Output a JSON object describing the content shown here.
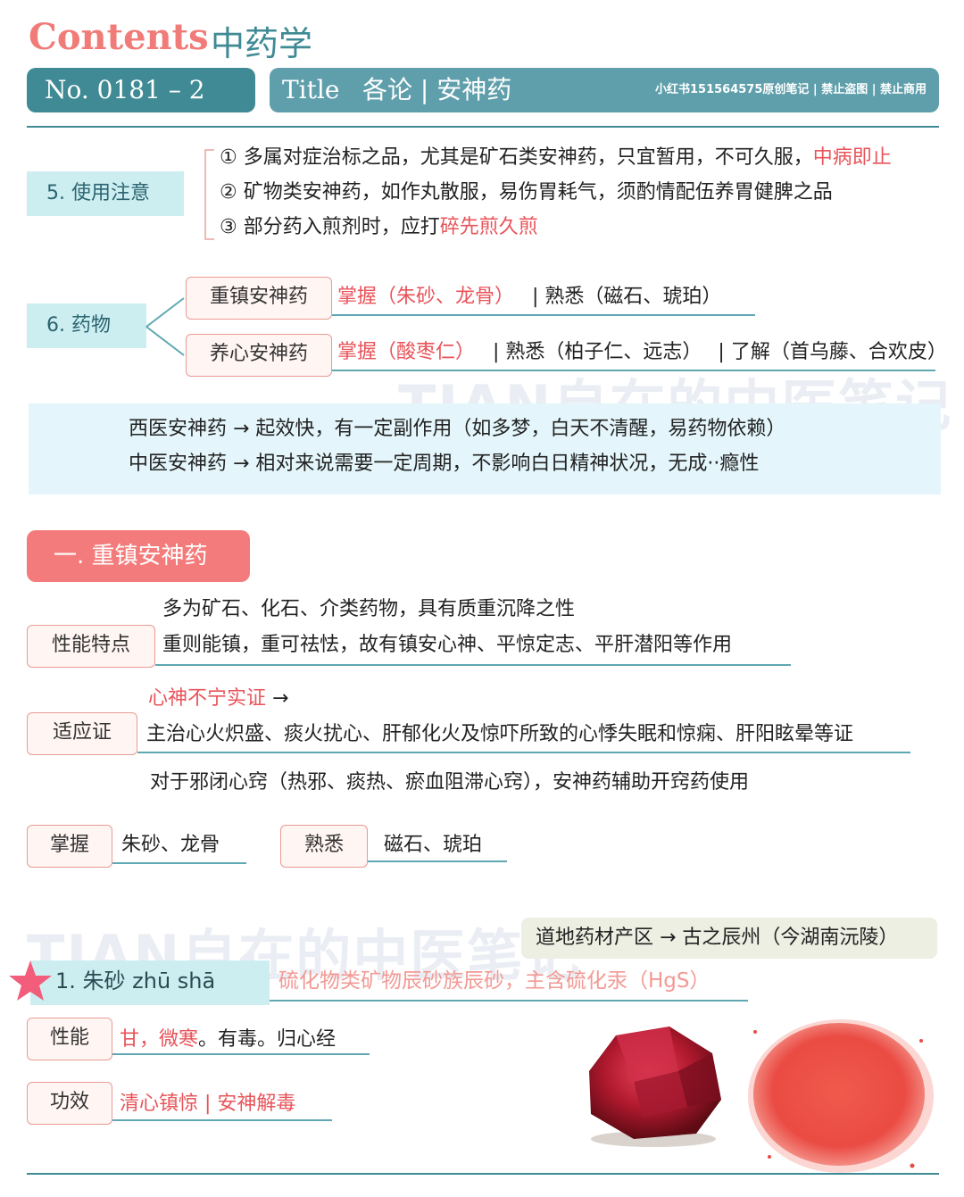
{
  "header": {
    "contents_word": "Contents",
    "contents_subject": "中药学",
    "number": "No. 0181 – 2",
    "title_label": "Title",
    "title_text": "各论 | 安神药",
    "copyright_note": "小红书151564575原创笔记 | 禁止盗图 | 禁止商用"
  },
  "usage": {
    "label": "5.  使用注意",
    "items": [
      {
        "text": "① 多属对症治标之品，尤其是矿石类安神药，只宜暂用，不可久服，",
        "highlight": "中病即止"
      },
      {
        "text": "② 矿物类安神药，如作丸散服，易伤胃耗气，须酌情配伍养胃健脾之品",
        "highlight": ""
      },
      {
        "text": "③ 部分药入煎剂时，应打",
        "highlight": "碎先煎久煎"
      }
    ]
  },
  "drugs": {
    "label": "6.  药物",
    "groups": [
      {
        "name": "重镇安神药",
        "master": "掌握（朱砂、龙骨）",
        "familiar": "| 熟悉（磁石、琥珀）",
        "understand": ""
      },
      {
        "name": "养心安神药",
        "master": "掌握（酸枣仁）",
        "familiar": "| 熟悉（柏子仁、远志）",
        "understand": "| 了解（首乌藤、合欢皮）"
      }
    ]
  },
  "note": {
    "line1": "西医安神药 → 起效快，有一定副作用（如多梦，白天不清醒，易药物依赖）",
    "line2": "中医安神药 → 相对来说需要一定周期，不影响白日精神状况，无成··瘾性"
  },
  "section1": {
    "title": "一. 重镇安神药",
    "properties": {
      "label": "性能特点",
      "line1": "多为矿石、化石、介类药物，具有质重沉降之性",
      "line2": "重则能镇，重可祛怯，故有镇安心神、平惊定志、平肝潜阳等作用"
    },
    "indication": {
      "label": "适应证",
      "highlight": "心神不宁实证",
      "arrow": "→",
      "line1": "主治心火炽盛、痰火扰心、肝郁化火及惊吓所致的心悸失眠和惊痫、肝阳眩晕等证",
      "line2": "对于邪闭心窍（热邪、痰热、瘀血阻滞心窍），安神药辅助开窍药使用"
    },
    "master": {
      "label": "掌握",
      "value": "朱砂、龙骨"
    },
    "familiar": {
      "label": "熟悉",
      "value": "磁石、琥珀"
    }
  },
  "zhusha": {
    "title": "1.  朱砂  zhū  shā",
    "origin": "道地药材产区 → 古之辰州（今湖南沅陵）",
    "source": "硫化物类矿物辰砂族辰砂，主含硫化汞（HgS）",
    "nature_label": "性能",
    "nature_highlight": "甘，微寒",
    "nature_rest": "。有毒。归心经",
    "effect_label": "功效",
    "effect_value": "清心镇惊 | 安神解毒"
  },
  "watermark": "TIAN自在的中医笔记",
  "colors": {
    "teal": "#3f8a94",
    "coral": "#f47b7b",
    "red": "#e8545a",
    "light_teal": "#cdeef1"
  }
}
